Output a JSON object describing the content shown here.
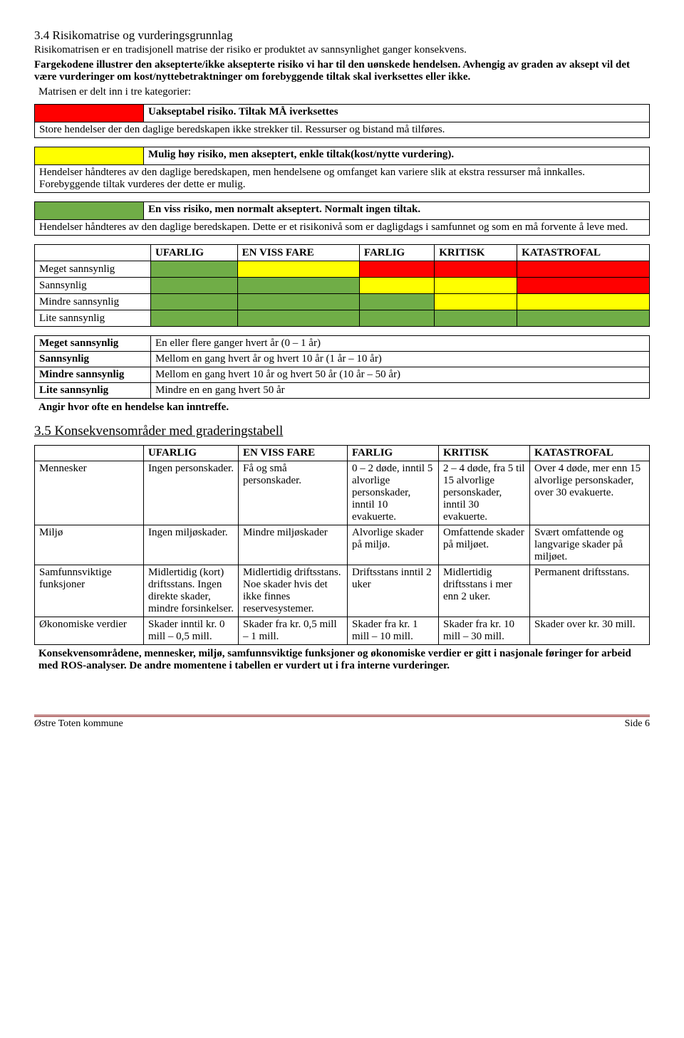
{
  "heading": "3.4 Risikomatrise og vurderingsgrunnlag",
  "intro_p1": "Risikomatrisen er en tradisjonell matrise der risiko er produktet av sannsynlighet ganger konsekvens.",
  "intro_p2": "Fargekodene illustrer den aksepterte/ikke aksepterte risiko vi har til den uønskede hendelsen. Avhengig av graden av aksept vil det være vurderinger om kost/nyttebetraktninger om forebyggende tiltak skal iverksettes eller ikke.",
  "intro_p3": "Matrisen er delt inn i tre kategorier:",
  "box_red_title": "Uakseptabel risiko. Tiltak MÅ iverksettes",
  "box_red_body": "Store hendelser der den daglige beredskapen ikke strekker til. Ressurser og bistand må tilføres.",
  "box_yellow_title": "Mulig høy risiko, men akseptert, enkle tiltak(kost/nytte vurdering).",
  "box_yellow_body": "Hendelser håndteres av den daglige beredskapen, men hendelsene og omfanget kan variere slik at ekstra ressurser må innkalles. Forebyggende tiltak vurderes der dette er mulig.",
  "box_green_title": "En viss risiko, men normalt akseptert. Normalt ingen tiltak.",
  "box_green_body": "Hendelser håndteres av den daglige beredskapen. Dette er et risikonivå som er dagligdags i samfunnet og som en må forvente å leve med.",
  "colors": {
    "red": "#ff0000",
    "yellow": "#ffff00",
    "green": "#70ad47"
  },
  "matrix": {
    "headers": [
      "UFARLIG",
      "EN VISS FARE",
      "FARLIG",
      "KRITISK",
      "KATASTROFAL"
    ],
    "rows": [
      {
        "label": "Meget sannsynlig",
        "cells": [
          "green",
          "yellow",
          "red",
          "red",
          "red"
        ]
      },
      {
        "label": "Sannsynlig",
        "cells": [
          "green",
          "green",
          "yellow",
          "yellow",
          "red"
        ]
      },
      {
        "label": "Mindre sannsynlig",
        "cells": [
          "green",
          "green",
          "green",
          "yellow",
          "yellow"
        ]
      },
      {
        "label": "Lite sannsynlig",
        "cells": [
          "green",
          "green",
          "green",
          "green",
          "green"
        ]
      }
    ]
  },
  "defs": {
    "rows": [
      [
        "Meget sannsynlig",
        "En eller flere ganger hvert år (0 – 1 år)"
      ],
      [
        "Sannsynlig",
        "Mellom en gang hvert år og hvert 10 år (1 år – 10 år)"
      ],
      [
        "Mindre sannsynlig",
        "Mellom en gang hvert 10 år og hvert 50 år (10 år – 50 år)"
      ],
      [
        "Lite sannsynlig",
        "Mindre en en gang hvert 50 år"
      ]
    ],
    "caption": "Angir hvor ofte en hendelse kan inntreffe."
  },
  "section35": "3.5 Konsekvensområder med graderingstabell",
  "grading": {
    "headers": [
      "",
      "UFARLIG",
      "EN VISS FARE",
      "FARLIG",
      "KRITISK",
      "KATASTROFAL"
    ],
    "col_widths": [
      "140px",
      "120px",
      "140px",
      "115px",
      "115px",
      "auto"
    ],
    "rows": [
      [
        "Mennesker",
        "Ingen personskader.",
        "Få og små personskader.",
        "0 – 2 døde, inntil 5 alvorlige personskader, inntil 10 evakuerte.",
        "2 – 4 døde, fra 5 til 15 alvorlige personskader, inntil 30 evakuerte.",
        "Over 4 døde, mer enn 15 alvorlige personskader, over 30 evakuerte."
      ],
      [
        "Miljø",
        "Ingen miljøskader.",
        "Mindre miljøskader",
        "Alvorlige skader på miljø.",
        "Omfattende skader på miljøet.",
        "Svært omfattende og langvarige skader på miljøet."
      ],
      [
        "Samfunnsviktige funksjoner",
        "Midlertidig (kort) driftsstans. Ingen direkte skader, mindre forsinkelser.",
        "Midlertidig driftsstans. Noe skader hvis det ikke finnes reservesystemer.",
        "Driftsstans inntil 2 uker",
        "Midlertidig driftsstans i mer enn 2 uker.",
        "Permanent driftsstans."
      ],
      [
        "Økonomiske verdier",
        "Skader inntil kr. 0 mill – 0,5 mill.",
        "Skader fra kr. 0,5 mill – 1 mill.",
        "Skader fra kr. 1 mill – 10 mill.",
        "Skader fra kr. 10 mill – 30 mill.",
        "Skader over kr. 30 mill."
      ]
    ]
  },
  "closing": "Konsekvensområdene, mennesker, miljø, samfunnsviktige funksjoner og økonomiske verdier er gitt i nasjonale føringer for arbeid med ROS-analyser. De andre momentene i tabellen er vurdert ut i fra interne vurderinger.",
  "footer_left": "Østre Toten kommune",
  "footer_right": "Side 6"
}
